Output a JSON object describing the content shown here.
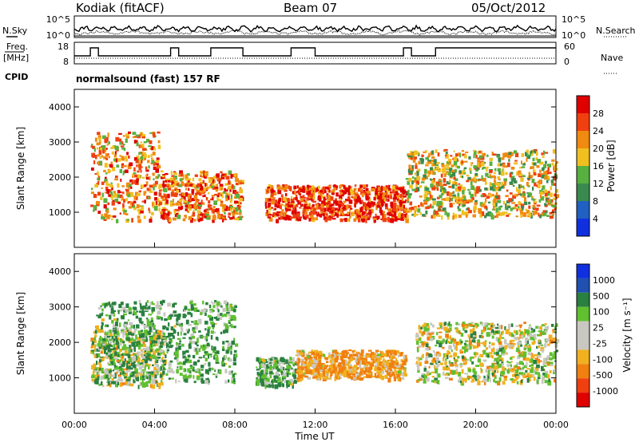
{
  "header": {
    "station": "Kodiak (fitACF)",
    "beam": "Beam 07",
    "date": "05/Oct/2012"
  },
  "side_labels": {
    "nsky": "N.Sky",
    "nsearch": "N.Search",
    "freq": "Freq.",
    "freq_unit": "[MHz]",
    "nave": "Nave",
    "cpid": "CPID"
  },
  "noise_panel": {
    "left_ticks": [
      "10^5",
      "10^0"
    ],
    "right_ticks": [
      "10^5",
      "10^0"
    ]
  },
  "freq_panel": {
    "left_ticks": [
      "18",
      "8"
    ],
    "right_ticks": [
      "60",
      "0"
    ]
  },
  "cpid_text": "normalsound (fast) 157 RF",
  "x_axis": {
    "ticks": [
      "00:00",
      "04:00",
      "08:00",
      "12:00",
      "16:00",
      "20:00",
      "00:00"
    ],
    "label": "Time UT"
  },
  "y_axis": {
    "ticks": [
      "1000",
      "2000",
      "3000",
      "4000"
    ],
    "label": "Slant Range [km]"
  },
  "colors": {
    "power_scale": [
      "#1030e0",
      "#2060c0",
      "#3a8a50",
      "#58b040",
      "#f0c020",
      "#f08a10",
      "#f04010",
      "#e00000"
    ],
    "velocity_pos": [
      "#1030e0",
      "#2050b0",
      "#2a8040",
      "#60c030"
    ],
    "velocity_ground": "#c8c8c0",
    "velocity_neg": [
      "#f0b020",
      "#f08010",
      "#f04010",
      "#e00000"
    ]
  },
  "chart_data": [
    {
      "type": "heatmap",
      "name": "power",
      "colorbar_label": "Power [dB]",
      "colorbar_ticks": [
        "4",
        "8",
        "12",
        "16",
        "20",
        "24",
        "28"
      ],
      "x_range_hours": [
        0,
        24
      ],
      "y_range_km": [
        0,
        4500
      ],
      "echo_regions": [
        {
          "t0": 0.8,
          "t1": 4.2,
          "r0": 800,
          "r1": 3300,
          "core_db": 22
        },
        {
          "t0": 4.2,
          "t1": 8.3,
          "r0": 800,
          "r1": 2200,
          "core_db": 24
        },
        {
          "t0": 9.5,
          "t1": 16.5,
          "r0": 800,
          "r1": 1800,
          "core_db": 28
        },
        {
          "t0": 16.5,
          "t1": 24,
          "r0": 900,
          "r1": 2800,
          "core_db": 18
        }
      ]
    },
    {
      "type": "heatmap",
      "name": "velocity",
      "colorbar_label": "Velocity [m s⁻¹]",
      "colorbar_ticks": [
        "1000",
        "500",
        "100",
        "25",
        "-25",
        "-100",
        "-500",
        "-1000"
      ],
      "x_range_hours": [
        0,
        24
      ],
      "y_range_km": [
        0,
        4500
      ],
      "echo_regions": [
        {
          "t0": 0.8,
          "t1": 4.5,
          "r0": 800,
          "r1": 2400,
          "vel": 0
        },
        {
          "t0": 1.0,
          "t1": 8.0,
          "r0": 900,
          "r1": 3200,
          "vel": 100
        },
        {
          "t0": 9.0,
          "t1": 11.0,
          "r0": 800,
          "r1": 1600,
          "vel": 100
        },
        {
          "t0": 11.0,
          "t1": 16.5,
          "r0": 1000,
          "r1": 1800,
          "vel": -100
        },
        {
          "t0": 17.0,
          "t1": 24,
          "r0": 900,
          "r1": 2600,
          "vel": 0
        }
      ]
    }
  ]
}
